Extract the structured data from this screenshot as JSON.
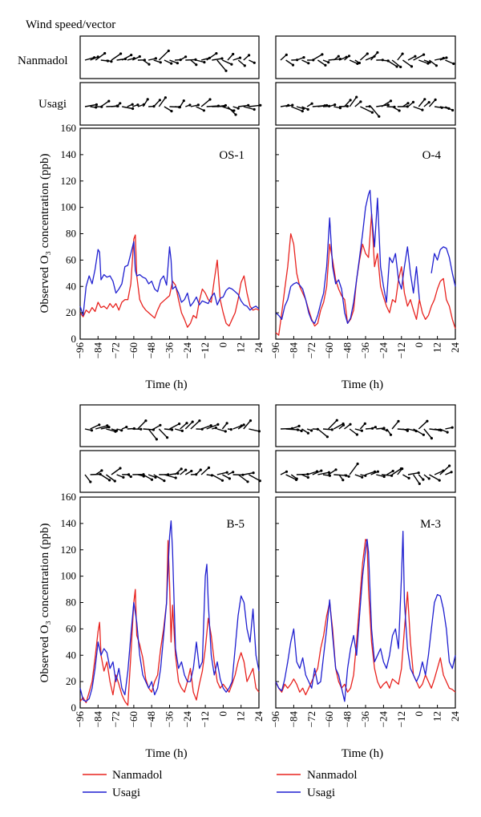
{
  "header": {
    "wind_title": "Wind speed/vector",
    "row_label_1": "Nanmadol",
    "row_label_2": "Usagi"
  },
  "legend": {
    "series_1": "Nanmadol",
    "series_2": "Usagi",
    "color_1": "#e8231f",
    "color_2": "#1f1fd0"
  },
  "chart_data": [
    {
      "type": "line",
      "title": "OS-1",
      "xlabel": "Time (h)",
      "ylabel": "Observed O₃ concentration (ppb)",
      "xlim": [
        -96,
        24
      ],
      "ylim": [
        0,
        160
      ],
      "xticks": [
        -96,
        -84,
        -72,
        -60,
        -48,
        -36,
        -24,
        -12,
        0,
        12,
        24
      ],
      "yticks": [
        0,
        20,
        40,
        60,
        80,
        100,
        120,
        140,
        160
      ],
      "series": [
        {
          "name": "Nanmadol",
          "x": [
            -96,
            -94,
            -92,
            -90,
            -88,
            -86,
            -84,
            -82,
            -80,
            -78,
            -76,
            -74,
            -72,
            -70,
            -68,
            -66,
            -64,
            -62,
            -60,
            -59,
            -58,
            -56,
            -54,
            -52,
            -50,
            -48,
            -46,
            -44,
            -42,
            -40,
            -38,
            -36,
            -34,
            -32,
            -30,
            -28,
            -26,
            -24,
            -22,
            -20,
            -18,
            -16,
            -14,
            -12,
            -10,
            -8,
            -6,
            -4,
            -2,
            0,
            2,
            4,
            6,
            8,
            10,
            12,
            14,
            16,
            18,
            20,
            22,
            24
          ],
          "y": [
            20,
            17,
            22,
            20,
            24,
            21,
            28,
            24,
            25,
            23,
            27,
            24,
            27,
            22,
            28,
            30,
            30,
            42,
            76,
            79,
            48,
            30,
            25,
            22,
            20,
            18,
            16,
            22,
            27,
            29,
            31,
            33,
            44,
            41,
            30,
            20,
            15,
            9,
            12,
            18,
            16,
            29,
            38,
            35,
            30,
            28,
            45,
            60,
            30,
            20,
            12,
            10,
            15,
            20,
            30,
            43,
            48,
            35,
            25,
            22,
            23,
            22
          ]
        },
        {
          "name": "Usagi",
          "x": [
            -96,
            -94,
            -92,
            -90,
            -88,
            -86,
            -84,
            -83,
            -82,
            -80,
            -78,
            -76,
            -74,
            -72,
            -70,
            -68,
            -66,
            -64,
            -62,
            -60,
            -59,
            -58,
            -56,
            -54,
            -52,
            -50,
            -48,
            -46,
            -44,
            -42,
            -40,
            -38,
            -36,
            -35,
            -34,
            -32,
            -30,
            -28,
            -26,
            -24,
            -22,
            -20,
            -18,
            -16,
            -14,
            -12,
            -10,
            -8,
            -6,
            -4,
            -2,
            0,
            2,
            4,
            6,
            8,
            10,
            12,
            14,
            16,
            18,
            20,
            22,
            24
          ],
          "y": [
            25,
            18,
            40,
            48,
            42,
            53,
            68,
            66,
            45,
            49,
            47,
            48,
            44,
            35,
            38,
            42,
            55,
            56,
            65,
            74,
            52,
            48,
            49,
            47,
            46,
            42,
            44,
            38,
            36,
            45,
            48,
            41,
            70,
            60,
            38,
            40,
            35,
            28,
            30,
            35,
            25,
            28,
            32,
            26,
            29,
            28,
            27,
            32,
            35,
            26,
            31,
            32,
            37,
            39,
            38,
            36,
            34,
            29,
            26,
            25,
            22,
            24,
            25,
            23
          ]
        }
      ]
    },
    {
      "type": "line",
      "title": "O-4",
      "xlabel": "Time (h)",
      "ylabel": "",
      "xlim": [
        -96,
        24
      ],
      "ylim": [
        0,
        160
      ],
      "xticks": [
        -96,
        -84,
        -72,
        -60,
        -48,
        -36,
        -24,
        -12,
        0,
        12,
        24
      ],
      "yticks": [
        0,
        20,
        40,
        60,
        80,
        100,
        120,
        140,
        160
      ],
      "series": [
        {
          "name": "Nanmadol",
          "x": [
            -96,
            -94,
            -92,
            -90,
            -88,
            -86,
            -84,
            -82,
            -80,
            -78,
            -76,
            -74,
            -72,
            -70,
            -68,
            -66,
            -64,
            -62,
            -60,
            -58,
            -56,
            -54,
            -52,
            -50,
            -48,
            -46,
            -44,
            -42,
            -40,
            -38,
            -36,
            -34,
            -32,
            -30,
            -28,
            -26,
            -24,
            -22,
            -20,
            -18,
            -16,
            -14,
            -12,
            -10,
            -8,
            -6,
            -4,
            -2,
            0,
            2,
            4,
            6,
            8,
            10,
            12,
            14,
            16,
            18,
            20,
            22,
            24
          ],
          "y": [
            5,
            3,
            20,
            38,
            55,
            80,
            72,
            50,
            40,
            35,
            30,
            22,
            15,
            10,
            12,
            22,
            28,
            40,
            72,
            60,
            45,
            38,
            33,
            30,
            12,
            15,
            22,
            45,
            60,
            72,
            65,
            62,
            95,
            55,
            65,
            40,
            32,
            25,
            20,
            30,
            28,
            45,
            55,
            35,
            25,
            30,
            22,
            15,
            30,
            20,
            15,
            18,
            25,
            30,
            38,
            44,
            46,
            30,
            25,
            15,
            8
          ]
        },
        {
          "name": "Usagi",
          "x": [
            -96,
            -94,
            -92,
            -90,
            -88,
            -86,
            -84,
            -82,
            -80,
            -78,
            -76,
            -74,
            -72,
            -70,
            -68,
            -66,
            -64,
            -62,
            -60,
            -58,
            -56,
            -54,
            -52,
            -50,
            -48,
            -46,
            -44,
            -42,
            -40,
            -38,
            -36,
            -34,
            -33,
            -32,
            -30,
            -28,
            -26,
            -24,
            -22,
            -20,
            -18,
            -16,
            -14,
            -12,
            -10,
            -8,
            -6,
            -4,
            -2,
            0
          ],
          "y": [
            20,
            18,
            15,
            25,
            30,
            40,
            42,
            43,
            41,
            38,
            30,
            20,
            14,
            12,
            18,
            27,
            35,
            55,
            92,
            55,
            42,
            45,
            38,
            20,
            12,
            16,
            28,
            45,
            62,
            80,
            100,
            110,
            113,
            95,
            70,
            107,
            55,
            40,
            28,
            62,
            58,
            65,
            45,
            38,
            55,
            70,
            50,
            35,
            55,
            30
          ]
        },
        {
          "name": "Usagi",
          "x": [
            8,
            10,
            12,
            14,
            16,
            18,
            20,
            22,
            24
          ],
          "y": [
            50,
            65,
            60,
            68,
            70,
            69,
            62,
            50,
            40
          ]
        }
      ]
    },
    {
      "type": "line",
      "title": "B-5",
      "xlabel": "Time (h)",
      "ylabel": "Observed O₃ concentration (ppb)",
      "xlim": [
        -96,
        24
      ],
      "ylim": [
        0,
        160
      ],
      "xticks": [
        -96,
        -84,
        -72,
        -60,
        -48,
        -36,
        -24,
        -12,
        0,
        12,
        24
      ],
      "yticks": [
        0,
        20,
        40,
        60,
        80,
        100,
        120,
        140,
        160
      ],
      "series": [
        {
          "name": "Nanmadol",
          "x": [
            -96,
            -94,
            -92,
            -90,
            -88,
            -86,
            -84,
            -83,
            -82,
            -80,
            -78,
            -76,
            -74,
            -72,
            -70,
            -68,
            -66,
            -64,
            -62,
            -60,
            -59,
            -58,
            -56,
            -54,
            -52,
            -50,
            -48,
            -46,
            -44,
            -42,
            -40,
            -38,
            -37,
            -36,
            -35,
            -34,
            -32,
            -30,
            -28,
            -26,
            -24,
            -22,
            -20,
            -18,
            -16,
            -14,
            -12,
            -10,
            -8,
            -6,
            -4,
            -2,
            0,
            2,
            4,
            6,
            8,
            10,
            12,
            14,
            16,
            18,
            20,
            22,
            24
          ],
          "y": [
            5,
            8,
            4,
            12,
            20,
            38,
            58,
            65,
            40,
            28,
            35,
            20,
            10,
            25,
            18,
            10,
            5,
            2,
            40,
            80,
            90,
            55,
            48,
            38,
            22,
            15,
            12,
            20,
            25,
            45,
            60,
            80,
            127,
            95,
            50,
            78,
            40,
            20,
            15,
            12,
            20,
            30,
            12,
            6,
            18,
            28,
            45,
            68,
            55,
            35,
            20,
            15,
            18,
            15,
            12,
            18,
            25,
            35,
            42,
            35,
            20,
            25,
            30,
            15,
            12
          ]
        },
        {
          "name": "Usagi",
          "x": [
            -96,
            -94,
            -92,
            -90,
            -88,
            -86,
            -84,
            -82,
            -80,
            -78,
            -76,
            -74,
            -72,
            -70,
            -68,
            -66,
            -64,
            -62,
            -60,
            -58,
            -56,
            -54,
            -52,
            -50,
            -48,
            -46,
            -44,
            -42,
            -40,
            -38,
            -36,
            -35,
            -34,
            -32,
            -30,
            -28,
            -26,
            -24,
            -22,
            -20,
            -18,
            -16,
            -14,
            -12,
            -11,
            -10,
            -8,
            -6,
            -4,
            -2,
            0,
            2,
            4,
            6,
            8,
            10,
            12,
            14,
            16,
            18,
            20,
            22,
            24
          ],
          "y": [
            15,
            6,
            5,
            7,
            15,
            30,
            50,
            40,
            45,
            42,
            30,
            35,
            20,
            30,
            15,
            10,
            28,
            55,
            80,
            65,
            40,
            25,
            20,
            15,
            20,
            10,
            15,
            30,
            55,
            80,
            130,
            142,
            120,
            45,
            30,
            35,
            25,
            20,
            20,
            30,
            50,
            30,
            35,
            100,
            109,
            80,
            40,
            25,
            35,
            22,
            15,
            12,
            15,
            20,
            45,
            70,
            85,
            80,
            60,
            50,
            75,
            40,
            28
          ]
        }
      ]
    },
    {
      "type": "line",
      "title": "M-3",
      "xlabel": "Time (h)",
      "ylabel": "",
      "xlim": [
        -96,
        24
      ],
      "ylim": [
        0,
        160
      ],
      "xticks": [
        -96,
        -84,
        -72,
        -60,
        -48,
        -36,
        -24,
        -12,
        0,
        12,
        24
      ],
      "yticks": [
        0,
        20,
        40,
        60,
        80,
        100,
        120,
        140,
        160
      ],
      "series": [
        {
          "name": "Nanmadol",
          "x": [
            -96,
            -94,
            -92,
            -90,
            -88,
            -86,
            -84,
            -82,
            -80,
            -78,
            -76,
            -74,
            -72,
            -70,
            -68,
            -66,
            -64,
            -62,
            -60,
            -58,
            -56,
            -54,
            -52,
            -50,
            -48,
            -46,
            -44,
            -42,
            -40,
            -38,
            -36,
            -35,
            -34,
            -32,
            -30,
            -28,
            -26,
            -24,
            -22,
            -20,
            -18,
            -16,
            -14,
            -12,
            -10,
            -8,
            -6,
            -4,
            -2,
            0,
            2,
            4,
            6,
            8,
            10,
            12,
            14,
            16,
            18,
            20,
            22,
            24
          ],
          "y": [
            20,
            15,
            12,
            18,
            15,
            18,
            22,
            18,
            12,
            15,
            10,
            15,
            20,
            25,
            30,
            45,
            55,
            70,
            80,
            60,
            30,
            20,
            15,
            18,
            12,
            15,
            25,
            50,
            80,
            110,
            128,
            126,
            90,
            50,
            30,
            20,
            15,
            18,
            20,
            15,
            22,
            20,
            18,
            30,
            60,
            88,
            50,
            25,
            20,
            15,
            18,
            25,
            20,
            15,
            22,
            30,
            38,
            25,
            20,
            15,
            14,
            12
          ]
        },
        {
          "name": "Usagi",
          "x": [
            -96,
            -94,
            -92,
            -90,
            -88,
            -86,
            -84,
            -82,
            -80,
            -78,
            -76,
            -74,
            -72,
            -70,
            -68,
            -66,
            -64,
            -62,
            -60,
            -58,
            -56,
            -54,
            -52,
            -50,
            -48,
            -46,
            -44,
            -42,
            -40,
            -38,
            -36,
            -35,
            -34,
            -32,
            -30,
            -28,
            -26,
            -24,
            -22,
            -20,
            -18,
            -16,
            -14,
            -12,
            -11,
            -10,
            -8,
            -6,
            -4,
            -2,
            0,
            2,
            4,
            6,
            8,
            10,
            12,
            14,
            16,
            18,
            20,
            22,
            24
          ],
          "y": [
            20,
            15,
            13,
            22,
            35,
            50,
            60,
            35,
            30,
            38,
            25,
            20,
            15,
            30,
            18,
            20,
            40,
            60,
            82,
            55,
            30,
            25,
            15,
            5,
            30,
            45,
            55,
            40,
            70,
            100,
            120,
            128,
            118,
            60,
            35,
            40,
            45,
            35,
            30,
            40,
            55,
            60,
            45,
            100,
            134,
            80,
            45,
            30,
            25,
            20,
            25,
            35,
            25,
            40,
            60,
            80,
            86,
            85,
            75,
            60,
            35,
            30,
            40
          ]
        }
      ]
    }
  ]
}
